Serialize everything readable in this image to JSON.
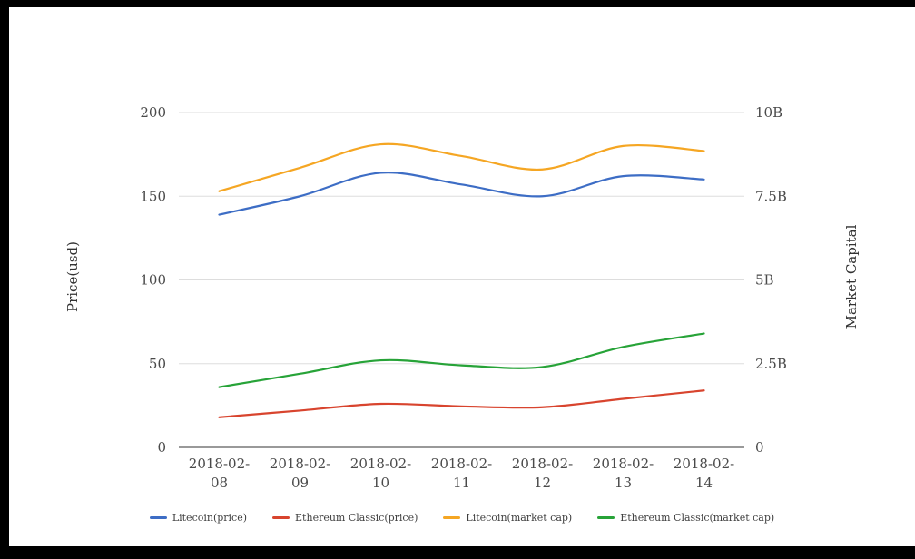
{
  "chart_data": {
    "type": "line",
    "title": "",
    "xlabel": "",
    "categories": [
      "2018-02-08",
      "2018-02-09",
      "2018-02-10",
      "2018-02-11",
      "2018-02-12",
      "2018-02-13",
      "2018-02-14"
    ],
    "left_axis": {
      "label": "Price(usd)",
      "ticks": [
        "0",
        "50",
        "100",
        "150",
        "200"
      ],
      "range": [
        0,
        200
      ]
    },
    "right_axis": {
      "label": "Market Capital",
      "ticks": [
        "0",
        "2.5B",
        "5B",
        "7.5B",
        "10B"
      ],
      "range": [
        0,
        10
      ]
    },
    "series": [
      {
        "name": "Litecoin(price)",
        "axis": "left",
        "color": "#3d6dc5",
        "values": [
          139,
          150,
          164,
          157,
          150,
          162,
          160
        ]
      },
      {
        "name": "Ethereum Classic(price)",
        "axis": "left",
        "color": "#d8442e",
        "values": [
          18,
          22,
          26,
          24.5,
          24,
          29,
          34
        ]
      },
      {
        "name": "Litecoin(market cap)",
        "axis": "right",
        "color": "#f5a623",
        "values": [
          7.65,
          8.35,
          9.05,
          8.7,
          8.3,
          9.0,
          8.85
        ]
      },
      {
        "name": "Ethereum Classic(market cap)",
        "axis": "right",
        "color": "#27a338",
        "values": [
          1.8,
          2.2,
          2.6,
          2.45,
          2.4,
          3.0,
          3.4
        ]
      }
    ],
    "grid": true,
    "legend_position": "bottom",
    "smooth": true,
    "colors": {
      "grid_line": "#dddddd",
      "axis_line": "#333333",
      "tick_text": "#4a4a4a",
      "legend_text": "#3f3f3f",
      "background": "#ffffff",
      "frame": "#000000"
    }
  }
}
